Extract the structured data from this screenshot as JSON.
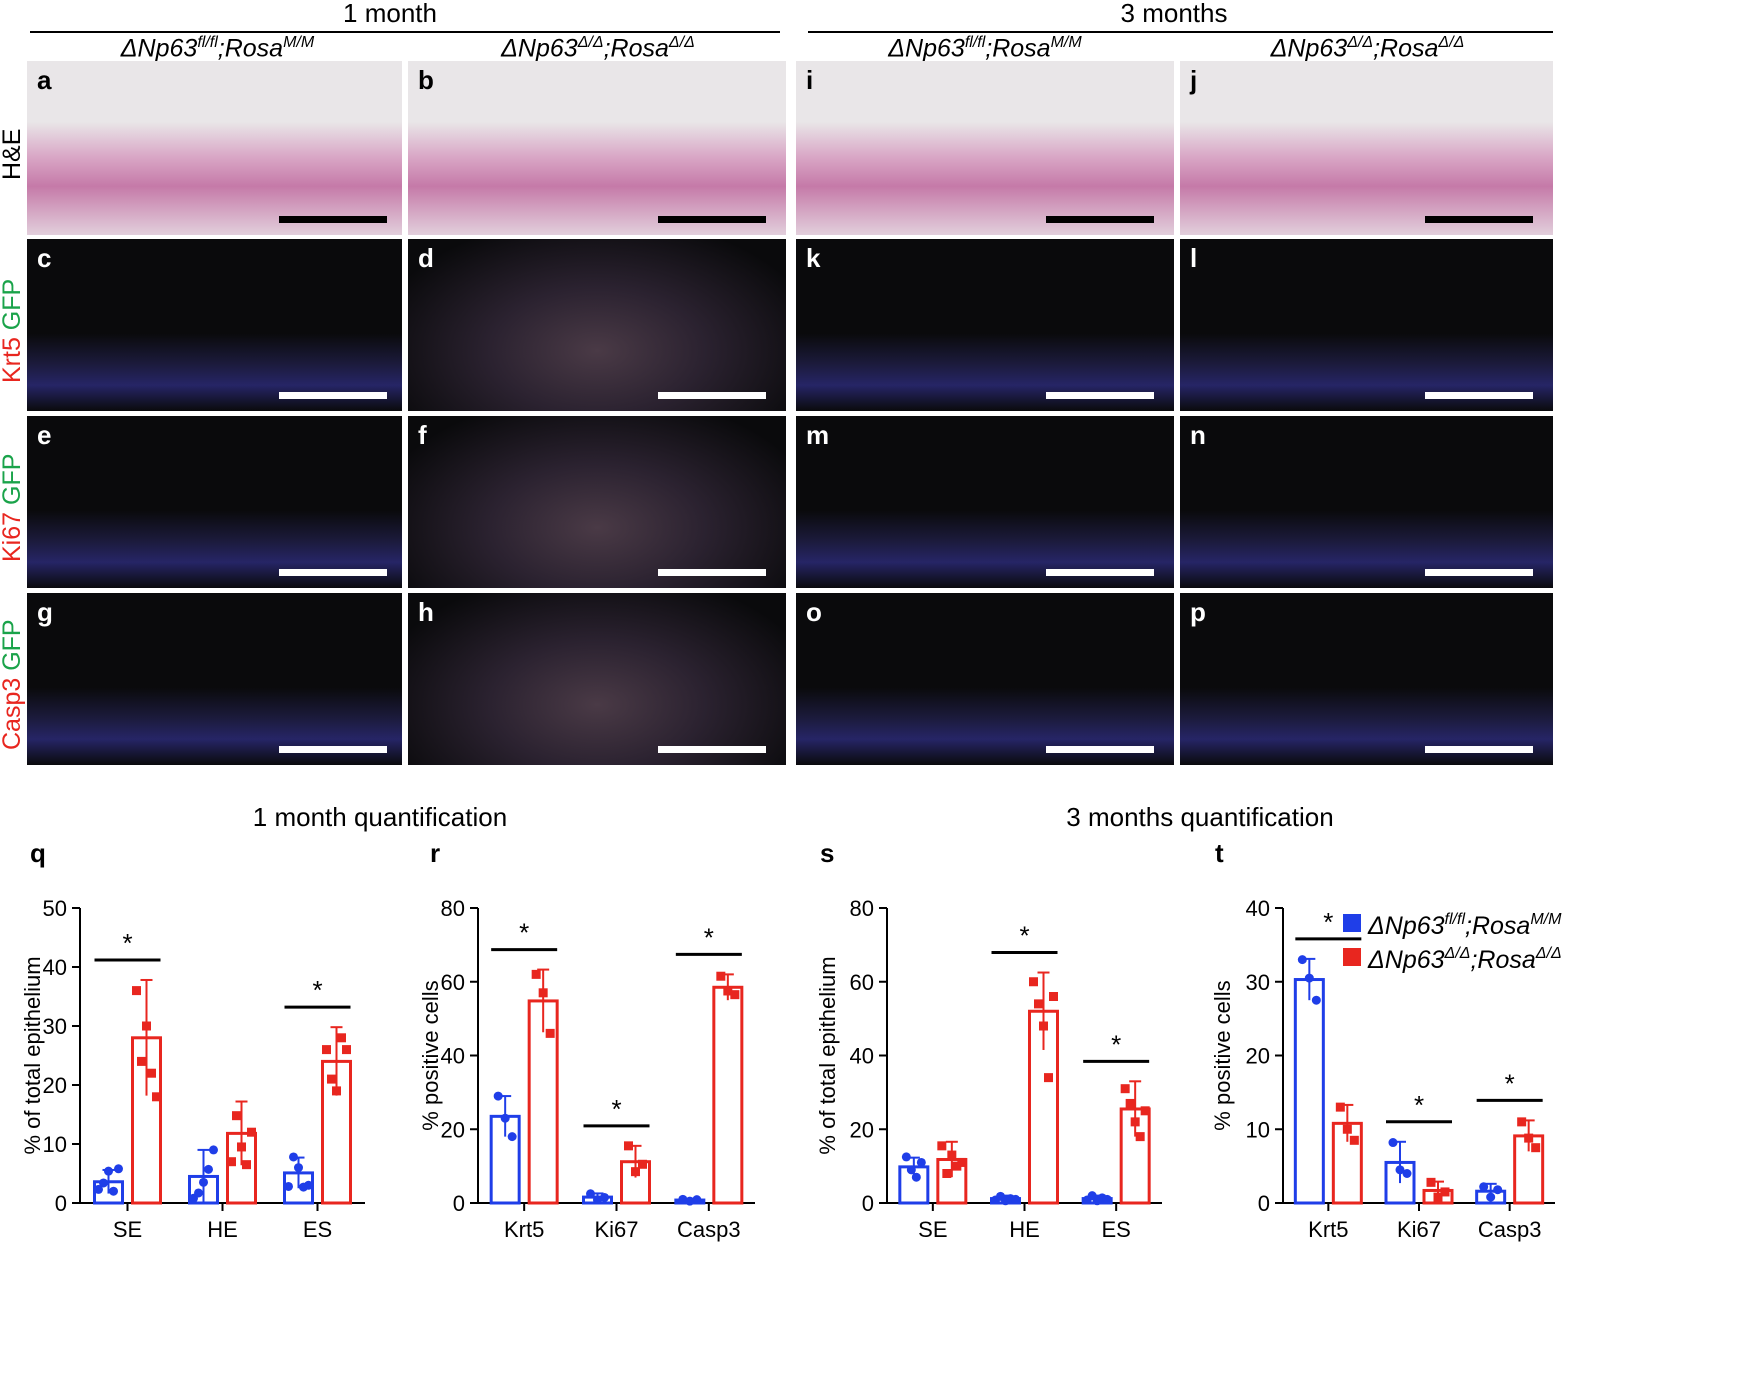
{
  "headers": {
    "group_1": "1 month",
    "group_2": "3 months"
  },
  "genotypes": {
    "control": {
      "base": "ΔNp63",
      "sup1": "fl/fl",
      "mid": ";Rosa",
      "sup2": "M/M"
    },
    "mutant": {
      "base": "ΔNp63",
      "sup1": "Δ/Δ",
      "mid": ";Rosa",
      "sup2": "Δ/Δ"
    }
  },
  "row_labels": {
    "he": "H&E",
    "krt5": {
      "marker": "Krt5",
      "gfp": "GFP"
    },
    "ki67": {
      "marker": "Ki67",
      "gfp": "GFP"
    },
    "casp3": {
      "marker": "Casp3",
      "gfp": "GFP"
    }
  },
  "panel_letters": {
    "r1": [
      "a",
      "b",
      "i",
      "j"
    ],
    "r2": [
      "c",
      "d",
      "k",
      "l"
    ],
    "r3": [
      "e",
      "f",
      "m",
      "n"
    ],
    "r4": [
      "g",
      "h",
      "o",
      "p"
    ]
  },
  "colors": {
    "control": "#1f3ee8",
    "mutant": "#e8261f",
    "he_bg": "#e9e6e8",
    "fl_bg": "#0a0a0c"
  },
  "quant_titles": {
    "left": "1 month quantification",
    "right": "3 months quantification"
  },
  "legend": {
    "control": {
      "base": "ΔNp63",
      "sup1": "fl/fl",
      "mid": ";Rosa",
      "sup2": "M/M"
    },
    "mutant": {
      "base": "ΔNp63",
      "sup1": "Δ/Δ",
      "mid": ";Rosa",
      "sup2": "Δ/Δ"
    }
  },
  "chart_data": [
    {
      "type": "bar",
      "panel": "q",
      "ylabel": "% of total epithelium",
      "ylim": [
        0,
        50
      ],
      "yticks": [
        0,
        10,
        20,
        30,
        40,
        50
      ],
      "categories": [
        "SE",
        "HE",
        "ES"
      ],
      "series": [
        {
          "values": [
            3.6,
            4.5,
            5.1
          ],
          "err": [
            2.0,
            4.5,
            2.6
          ],
          "points": [
            [
              2.3,
              3.4,
              5.4,
              2.0,
              5.8
            ],
            [
              0.8,
              1.7,
              3.5,
              5.7,
              9.0
            ],
            [
              2.8,
              7.8,
              6.0,
              2.7,
              3.0
            ]
          ]
        },
        {
          "values": [
            28.0,
            11.8,
            24.0
          ],
          "err": [
            9.8,
            5.4,
            5.8
          ],
          "points": [
            [
              36.0,
              24.0,
              30.0,
              22.0,
              18.0
            ],
            [
              7.0,
              14.8,
              9.5,
              6.5,
              12.0
            ],
            [
              26.0,
              21.0,
              19.0,
              28.0,
              26.0
            ]
          ]
        }
      ],
      "significance": [
        {
          "category": "SE",
          "label": "*"
        },
        {
          "category": "ES",
          "label": "*"
        }
      ]
    },
    {
      "type": "bar",
      "panel": "r",
      "ylabel": "% positive cells",
      "ylim": [
        0,
        80
      ],
      "yticks": [
        0,
        20,
        40,
        60,
        80
      ],
      "categories": [
        "Krt5",
        "Ki67",
        "Casp3"
      ],
      "series": [
        {
          "values": [
            23.5,
            1.6,
            0.8
          ],
          "err": [
            5.5,
            1.0,
            0.4
          ],
          "points": [
            [
              29.0,
              23.0,
              18.0
            ],
            [
              2.5,
              0.8,
              1.5
            ],
            [
              1.0,
              0.5,
              0.9
            ]
          ]
        },
        {
          "values": [
            54.8,
            11.2,
            58.5
          ],
          "err": [
            8.5,
            4.3,
            3.5
          ],
          "points": [
            [
              62.0,
              57.0,
              46.0
            ],
            [
              15.5,
              8.5,
              10.5
            ],
            [
              61.5,
              57.5,
              56.5
            ]
          ]
        }
      ],
      "significance": [
        {
          "category": "Krt5",
          "label": "*"
        },
        {
          "category": "Ki67",
          "label": "*"
        },
        {
          "category": "Casp3",
          "label": "*"
        }
      ]
    },
    {
      "type": "bar",
      "panel": "s",
      "ylabel": "% of total epithelium",
      "ylim": [
        0,
        80
      ],
      "yticks": [
        0,
        20,
        40,
        60,
        80
      ],
      "categories": [
        "SE",
        "HE",
        "ES"
      ],
      "series": [
        {
          "values": [
            9.8,
            1.2,
            1.2
          ],
          "err": [
            2.5,
            0.8,
            0.8
          ],
          "points": [
            [
              12.5,
              9.0,
              7.0,
              11.0
            ],
            [
              0.8,
              1.8,
              0.6,
              1.2,
              1.0
            ],
            [
              0.8,
              2.0,
              0.6,
              1.4,
              1.0
            ]
          ]
        },
        {
          "values": [
            11.8,
            52.0,
            25.5
          ],
          "err": [
            4.8,
            10.5,
            7.5
          ],
          "points": [
            [
              15.5,
              8.0,
              13.0,
              10.0,
              11.0
            ],
            [
              60.0,
              54.0,
              48.0,
              34.0,
              56.0
            ],
            [
              31.0,
              27.0,
              22.0,
              18.0,
              25.0
            ]
          ]
        }
      ],
      "significance": [
        {
          "category": "HE",
          "label": "*"
        },
        {
          "category": "ES",
          "label": "*"
        }
      ]
    },
    {
      "type": "bar",
      "panel": "t",
      "ylabel": "% positive cells",
      "ylim": [
        0,
        40
      ],
      "yticks": [
        0,
        10,
        20,
        30,
        40
      ],
      "categories": [
        "Krt5",
        "Ki67",
        "Casp3"
      ],
      "series": [
        {
          "values": [
            30.3,
            5.5,
            1.6
          ],
          "err": [
            2.8,
            2.8,
            1.0
          ],
          "points": [
            [
              33.0,
              30.5,
              27.5
            ],
            [
              8.2,
              4.5,
              4.0
            ],
            [
              2.2,
              0.8,
              1.8
            ]
          ]
        },
        {
          "values": [
            10.8,
            1.7,
            9.1
          ],
          "err": [
            2.5,
            1.2,
            2.1
          ],
          "points": [
            [
              13.0,
              10.0,
              8.5
            ],
            [
              2.8,
              0.8,
              1.5
            ],
            [
              11.0,
              8.8,
              7.5
            ]
          ]
        }
      ],
      "significance": [
        {
          "category": "Krt5",
          "label": "*"
        },
        {
          "category": "Ki67",
          "label": "*"
        },
        {
          "category": "Casp3",
          "label": "*"
        }
      ],
      "legend_position": "top-right"
    }
  ]
}
